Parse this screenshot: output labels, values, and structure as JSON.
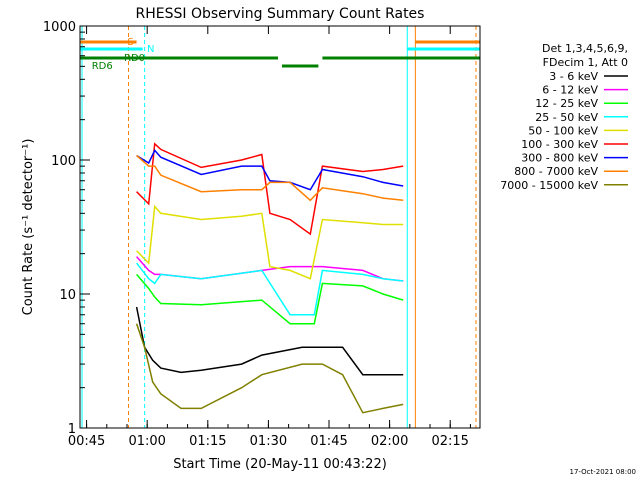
{
  "chart_data": {
    "type": "line",
    "title": "RHESSI Observing Summary Count Rates",
    "xlabel": "Start Time (20-May-11 00:43:22)",
    "ylabel": "Count Rate (s⁻¹ detector⁻¹)",
    "y_scale": "log",
    "ylim": [
      1,
      1000
    ],
    "xlim_minutes_after_0043": [
      0,
      99
    ],
    "x_ticks": [
      "00:45",
      "01:00",
      "01:15",
      "01:30",
      "01:45",
      "02:00",
      "02:15"
    ],
    "x_tick_minutes": [
      1.63,
      16.63,
      31.63,
      46.63,
      61.63,
      76.63,
      91.63
    ],
    "y_ticks": [
      "1",
      "10",
      "100",
      "1000"
    ],
    "y_tick_values": [
      1,
      10,
      100,
      1000
    ],
    "grid": false,
    "legend_placement": "right",
    "legend_header": [
      "Det 1,3,4,5,6,9,",
      "FDecim 1, Att 0"
    ],
    "footer": "17-Oct-2021 08:00",
    "series": [
      {
        "name": "3 - 6 keV",
        "color": "#000000",
        "x": [
          14,
          16,
          18,
          20,
          25,
          30,
          40,
          45,
          55,
          60,
          65,
          70,
          75,
          80
        ],
        "y": [
          8,
          4,
          3.2,
          2.8,
          2.6,
          2.7,
          3,
          3.5,
          4,
          4,
          4,
          2.5,
          2.5,
          2.5
        ]
      },
      {
        "name": "6 - 12 keV",
        "color": "#ff00ff",
        "x": [
          14,
          17,
          18.5,
          20,
          30,
          45,
          52,
          57,
          60,
          70,
          75,
          80
        ],
        "y": [
          19,
          15,
          14,
          14,
          13,
          15,
          16,
          16,
          16,
          15,
          13,
          12.5
        ]
      },
      {
        "name": "12 - 25 keV",
        "color": "#00ff00",
        "x": [
          14,
          17,
          18.5,
          20,
          30,
          45,
          52,
          58,
          60,
          70,
          75,
          80
        ],
        "y": [
          14,
          11,
          9.5,
          8.5,
          8.3,
          9,
          6,
          6,
          12,
          11.5,
          10,
          9
        ]
      },
      {
        "name": "25 - 50 keV",
        "color": "#00ffff",
        "x": [
          14,
          17,
          18.5,
          20,
          30,
          45,
          52,
          58,
          60,
          70,
          75,
          80
        ],
        "y": [
          17,
          13,
          12,
          14,
          13,
          15,
          7,
          7,
          15,
          14,
          13,
          12.5
        ]
      },
      {
        "name": "50 - 100 keV",
        "color": "#e0e000",
        "x": [
          14,
          17,
          18.5,
          20,
          30,
          40,
          45,
          47,
          52,
          57,
          60,
          70,
          75,
          80
        ],
        "y": [
          21,
          17,
          45,
          40,
          36,
          38,
          40,
          16,
          15,
          13,
          36,
          34,
          33,
          33
        ]
      },
      {
        "name": "100 - 300 keV",
        "color": "#ff0000",
        "x": [
          14,
          17,
          18.5,
          20,
          30,
          40,
          45,
          47,
          52,
          57,
          60,
          70,
          75,
          80
        ],
        "y": [
          58,
          47,
          132,
          120,
          88,
          100,
          110,
          40,
          36,
          28,
          90,
          82,
          85,
          90
        ]
      },
      {
        "name": "300 - 800 keV",
        "color": "#0000ff",
        "x": [
          14,
          17,
          18.5,
          20,
          30,
          40,
          45,
          47,
          52,
          57,
          60,
          70,
          75,
          80
        ],
        "y": [
          108,
          95,
          118,
          105,
          78,
          90,
          90,
          70,
          68,
          60,
          85,
          75,
          68,
          64
        ]
      },
      {
        "name": "800 - 7000 keV",
        "color": "#ff8000",
        "x": [
          14,
          17,
          18.5,
          20,
          30,
          40,
          45,
          47,
          52,
          57,
          60,
          70,
          75,
          80
        ],
        "y": [
          108,
          90,
          90,
          77,
          58,
          60,
          60,
          68,
          68,
          50,
          62,
          56,
          52,
          50
        ]
      },
      {
        "name": "7000 - 15000 keV",
        "color": "#808000",
        "x": [
          14,
          16,
          18,
          20,
          25,
          30,
          40,
          45,
          55,
          60,
          65,
          70,
          75,
          80
        ],
        "y": [
          6,
          4,
          2.2,
          1.8,
          1.4,
          1.4,
          2,
          2.5,
          3,
          3,
          2.5,
          1.3,
          1.4,
          1.5
        ]
      }
    ],
    "flag_labels": {
      "s": "S",
      "n": "N",
      "rd0": "RD0",
      "rd6": "RD6"
    },
    "colors": {
      "saa": "#ff8000",
      "night": "#00ffff",
      "rd": "#008000"
    }
  }
}
